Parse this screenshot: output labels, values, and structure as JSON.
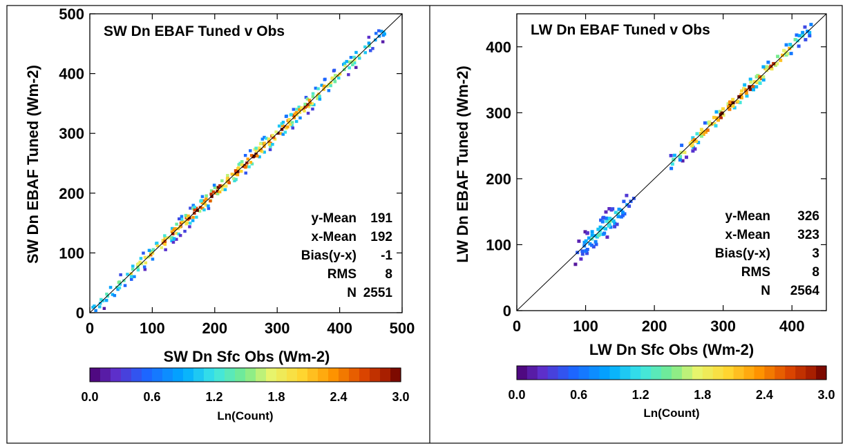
{
  "charts": [
    {
      "chart_data": {
        "type": "heatmap",
        "title": "SW Dn EBAF Tuned v Obs",
        "xlabel": "SW Dn Sfc Obs (Wm-2)",
        "ylabel": "SW Dn EBAF Tuned (Wm-2)",
        "xlim": [
          0,
          500
        ],
        "ylim": [
          0,
          500
        ],
        "xticks": [
          0,
          100,
          200,
          300,
          400,
          500
        ],
        "yticks": [
          0,
          100,
          200,
          300,
          400,
          500
        ],
        "one_to_one_line": true,
        "stats": [
          {
            "label": "y-Mean",
            "value": "191"
          },
          {
            "label": "x-Mean",
            "value": "192"
          },
          {
            "label": "Bias(y-x)",
            "value": "-1"
          },
          {
            "label": "RMS",
            "value": "8"
          },
          {
            "label": "N",
            "value": "2551"
          }
        ],
        "density_clusters": [
          {
            "x_range": [
              0,
              470
            ],
            "spread": 8,
            "peak_lncount": 2.9
          }
        ],
        "colorbar": {
          "label": "Ln(Count)",
          "range": [
            0.0,
            3.0
          ],
          "ticks": [
            "0.0",
            "0.6",
            "1.2",
            "1.8",
            "2.4",
            "3.0"
          ]
        }
      }
    },
    {
      "chart_data": {
        "type": "heatmap",
        "title": "LW Dn EBAF Tuned v Obs",
        "xlabel": "LW Dn Sfc Obs (Wm-2)",
        "ylabel": "LW Dn EBAF Tuned (Wm-2)",
        "xlim": [
          0,
          450
        ],
        "ylim": [
          0,
          450
        ],
        "xticks": [
          0,
          100,
          200,
          300,
          400
        ],
        "yticks": [
          0,
          100,
          200,
          300,
          400
        ],
        "one_to_one_line": true,
        "stats": [
          {
            "label": "y-Mean",
            "value": "326"
          },
          {
            "label": "x-Mean",
            "value": "323"
          },
          {
            "label": "Bias(y-x)",
            "value": "3"
          },
          {
            "label": "RMS",
            "value": "8"
          },
          {
            "label": "N",
            "value": "2564"
          }
        ],
        "density_clusters": [
          {
            "x_range": [
              85,
              165
            ],
            "spread": 10,
            "peak_lncount": 1.4
          },
          {
            "x_range": [
              215,
              425
            ],
            "spread": 7,
            "peak_lncount": 3.0
          }
        ],
        "colorbar": {
          "label": "Ln(Count)",
          "range": [
            0.0,
            3.0
          ],
          "ticks": [
            "0.0",
            "0.6",
            "1.2",
            "1.8",
            "2.4",
            "3.0"
          ]
        }
      }
    }
  ]
}
